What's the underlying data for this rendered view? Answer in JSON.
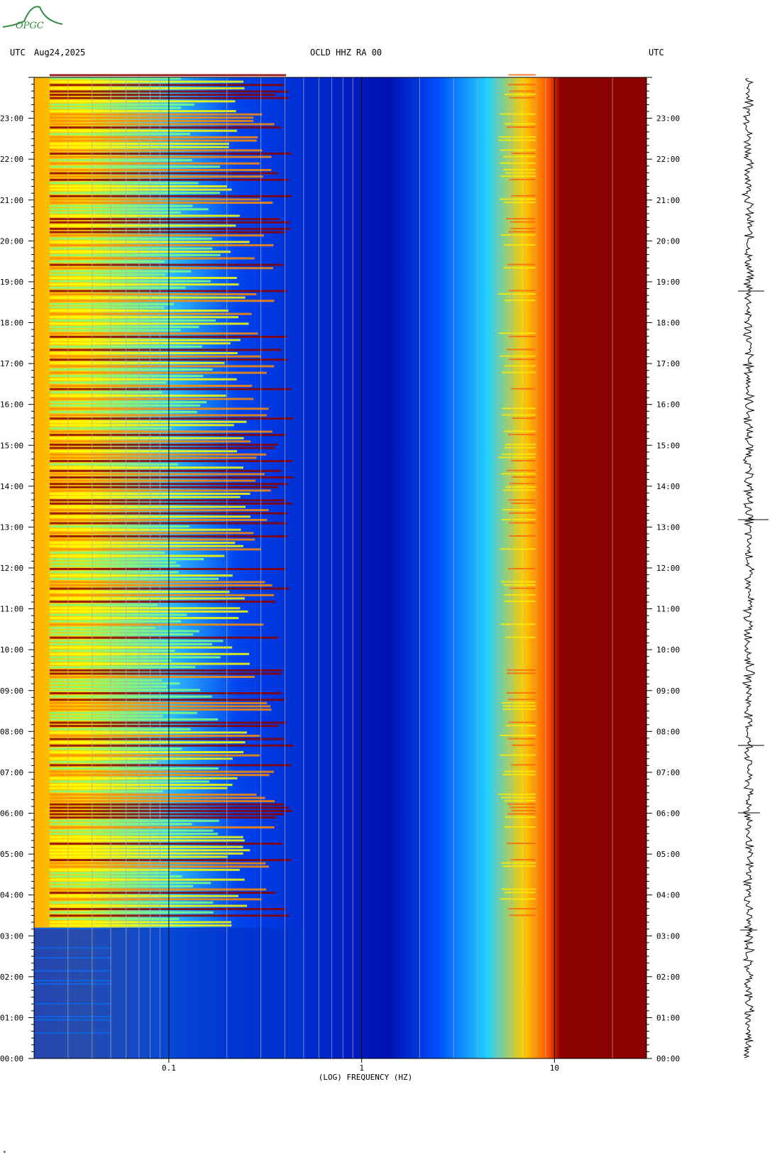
{
  "header": {
    "left_tz": "UTC",
    "date": "Aug24,2025",
    "station": "OCLD HHZ RA 00",
    "right_tz": "UTC"
  },
  "logo": {
    "text": "OPGC",
    "color": "#2e8b3c"
  },
  "chart_data": {
    "type": "heatmap",
    "title": "OCLD HHZ RA 00",
    "xlabel": "(LOG) FREQUENCY (HZ)",
    "ylabel": "UTC",
    "x_scale": "log",
    "x_range_hz": [
      0.02,
      30
    ],
    "x_tick_labels": [
      {
        "value": 0.1,
        "label": "0.1"
      },
      {
        "value": 1,
        "label": "1"
      },
      {
        "value": 10,
        "label": "10"
      }
    ],
    "y_range_hours": [
      0,
      24
    ],
    "y_tick_labels": [
      "00:00",
      "01:00",
      "02:00",
      "03:00",
      "04:00",
      "05:00",
      "06:00",
      "07:00",
      "08:00",
      "09:00",
      "10:00",
      "11:00",
      "12:00",
      "13:00",
      "14:00",
      "15:00",
      "16:00",
      "17:00",
      "18:00",
      "19:00",
      "20:00",
      "21:00",
      "22:00",
      "23:00"
    ],
    "colormap": [
      "#00008b",
      "#0033ff",
      "#00c8ff",
      "#7fff7f",
      "#ffff00",
      "#ff8c00",
      "#8b0000"
    ],
    "grid_frequencies_hz": [
      0.03,
      0.04,
      0.05,
      0.06,
      0.07,
      0.08,
      0.09,
      0.2,
      0.3,
      0.4,
      0.5,
      0.6,
      0.7,
      0.8,
      0.9,
      2,
      3,
      4,
      5,
      6,
      7,
      8,
      9,
      20,
      30
    ],
    "trace_label": "seismogram"
  },
  "footer": {
    "corner_mark": "✶"
  }
}
